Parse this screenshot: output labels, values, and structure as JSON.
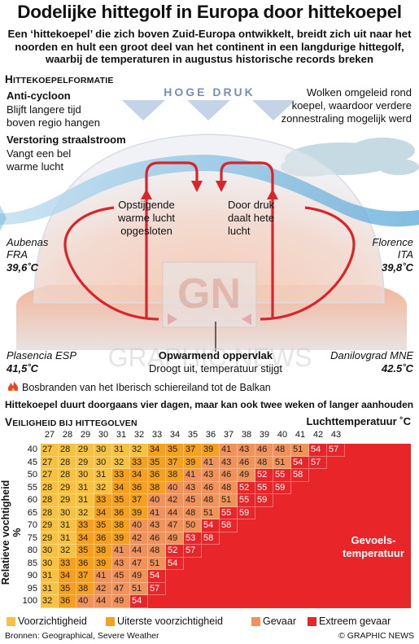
{
  "title": "Dodelijke hittegolf in Europa door hittekoepel",
  "subtitle": "Een ‘hittekoepel’ die zich boven Zuid-Europa ontwikkelt, breidt zich uit naar het noorden en hult een groot deel van het continent in een langdurige hittegolf, waarbij de temperaturen in augustus historische records breken",
  "formation": {
    "heading_big": "H",
    "heading_rest": "ITTEKOEPELFORMATIE",
    "high_pressure": "HOGE DRUK",
    "anticyclone_title": "Anti-cycloon",
    "anticyclone_text_1": "Blijft langere tijd",
    "anticyclone_text_2": "boven regio hangen",
    "jetstream_title": "Verstoring straalstroom",
    "jetstream_text_1": "Vangt een bel",
    "jetstream_text_2": "warme lucht",
    "clouds_1": "Wolken omgeleid rond",
    "clouds_2": "koepel, waardoor verdere",
    "clouds_3": "zonnestraling mogelijk werd",
    "rising_1": "Opstijgende",
    "rising_2": "warme lucht",
    "rising_3": "opgesloten",
    "sinking_1": "Door druk",
    "sinking_2": "daalt hete",
    "sinking_3": "lucht",
    "surface_title": "Opwarmend oppervlak",
    "surface_text": "Droogt uit, temperatuur stijgt",
    "watermark": "GRAPHIC NEWS",
    "logo": "GN"
  },
  "stations": [
    {
      "name": "Aubenas",
      "country": "FRA",
      "temp": "39,6˚C"
    },
    {
      "name": "Florence",
      "country": "ITA",
      "temp": "39,8˚C"
    },
    {
      "name": "Plasencia ESP",
      "temp": "41,5˚C"
    },
    {
      "name": "Danilovgrad MNE",
      "temp": "42.5˚C"
    }
  ],
  "wildfires": "Bosbranden van het Iberisch schiereiland tot de Balkan",
  "duration": "Hittekoepel duurt doorgaans vier dagen, maar kan ook twee weken of langer aanhouden",
  "safety": {
    "heading_big": "V",
    "heading_rest": "EILIGHEID BIJ HITTEGOLVEN",
    "air_temp_label": "Luchttemperatuur ˚C",
    "humidity_label": "Relatieve vochtigheid %",
    "felt_1": "Gevoels-",
    "felt_2": "temperatuur"
  },
  "table": {
    "air_temps": [
      "27",
      "28",
      "29",
      "30",
      "31",
      "32",
      "33",
      "34",
      "35",
      "36",
      "37",
      "38",
      "39",
      "40",
      "41",
      "42",
      "43"
    ],
    "humidity": [
      "40",
      "45",
      "50",
      "55",
      "60",
      "65",
      "70",
      "75",
      "80",
      "85",
      "90",
      "95",
      "100"
    ],
    "rows": [
      [
        "27",
        "28",
        "29",
        "30",
        "31",
        "32",
        "34",
        "35",
        "37",
        "39",
        "41",
        "43",
        "46",
        "48",
        "51",
        "54",
        "57"
      ],
      [
        "27",
        "28",
        "29",
        "30",
        "32",
        "33",
        "35",
        "37",
        "39",
        "41",
        "43",
        "46",
        "48",
        "51",
        "54",
        "57"
      ],
      [
        "27",
        "28",
        "30",
        "31",
        "33",
        "34",
        "36",
        "38",
        "41",
        "43",
        "46",
        "49",
        "52",
        "55",
        "58"
      ],
      [
        "28",
        "29",
        "31",
        "32",
        "34",
        "36",
        "38",
        "40",
        "43",
        "46",
        "48",
        "52",
        "55",
        "59"
      ],
      [
        "28",
        "29",
        "31",
        "33",
        "35",
        "37",
        "40",
        "42",
        "45",
        "48",
        "51",
        "55",
        "59"
      ],
      [
        "28",
        "30",
        "32",
        "34",
        "36",
        "39",
        "41",
        "44",
        "48",
        "51",
        "55",
        "59"
      ],
      [
        "29",
        "31",
        "33",
        "35",
        "38",
        "40",
        "43",
        "47",
        "50",
        "54",
        "58"
      ],
      [
        "29",
        "31",
        "34",
        "36",
        "39",
        "42",
        "46",
        "49",
        "53",
        "58"
      ],
      [
        "30",
        "32",
        "35",
        "38",
        "41",
        "44",
        "48",
        "52",
        "57"
      ],
      [
        "30",
        "33",
        "36",
        "39",
        "43",
        "47",
        "51",
        "54"
      ],
      [
        "31",
        "34",
        "37",
        "41",
        "45",
        "49",
        "54"
      ],
      [
        "31",
        "35",
        "38",
        "42",
        "47",
        "51",
        "57"
      ],
      [
        "32",
        "36",
        "40",
        "44",
        "49",
        "54"
      ]
    ]
  },
  "legend": [
    {
      "label": "Voorzichtigheid",
      "color": "#f7c242"
    },
    {
      "label": "Uiterste voorzichtigheid",
      "color": "#f5a01e"
    },
    {
      "label": "Gevaar",
      "color": "#f0925a"
    },
    {
      "label": "Extreem gevaar",
      "color": "#e8262a"
    }
  ],
  "sources": "Bronnen: Geographical, Severe Weather",
  "credit": "© GRAPHIC NEWS"
}
